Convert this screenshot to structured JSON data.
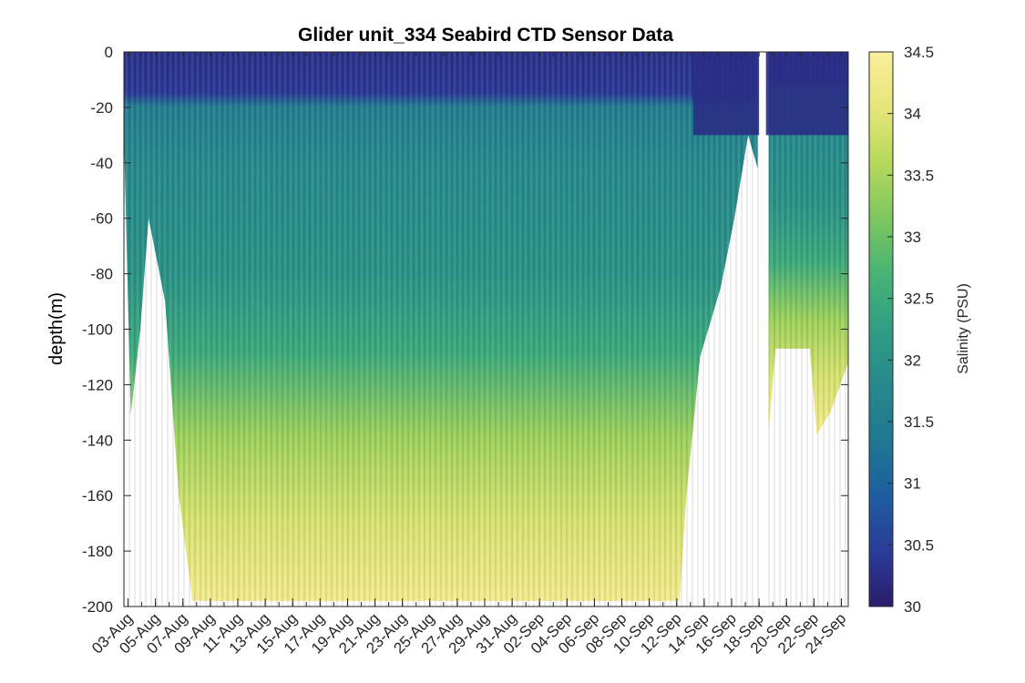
{
  "chart_data": {
    "type": "heatmap",
    "title": "Glider unit_334 Seabird CTD Sensor Data",
    "xlabel": "",
    "ylabel": "depth(m)",
    "ylim": [
      -200,
      0
    ],
    "yticks": [
      0,
      -20,
      -40,
      -60,
      -80,
      -100,
      -120,
      -140,
      -160,
      -180,
      -200
    ],
    "xlim_days": [
      0,
      52.8
    ],
    "xtick_labels": [
      "03-Aug",
      "05-Aug",
      "07-Aug",
      "09-Aug",
      "11-Aug",
      "13-Aug",
      "15-Aug",
      "17-Aug",
      "19-Aug",
      "21-Aug",
      "23-Aug",
      "25-Aug",
      "27-Aug",
      "29-Aug",
      "31-Aug",
      "02-Sep",
      "04-Sep",
      "06-Sep",
      "08-Sep",
      "10-Sep",
      "12-Sep",
      "14-Sep",
      "16-Sep",
      "18-Sep",
      "20-Sep",
      "22-Sep",
      "24-Sep"
    ],
    "colorbar": {
      "label": "Salinity (PSU)",
      "range": [
        30,
        34.5
      ],
      "ticks": [
        30,
        30.5,
        31,
        31.5,
        32,
        32.5,
        33,
        33.5,
        34,
        34.5
      ],
      "tick_labels": [
        "30",
        "30.5",
        "31",
        "31.5",
        "32",
        "32.5",
        "33",
        "33.5",
        "34",
        "34.5"
      ],
      "colormap": [
        "#2a1d6b",
        "#2a3c9a",
        "#1e5ea0",
        "#1f7891",
        "#27898c",
        "#2f9e84",
        "#48b474",
        "#7dc75f",
        "#b6d95a",
        "#e6e679",
        "#fbee9b"
      ]
    },
    "profile_max_depth": [
      {
        "day": 0,
        "depth": -30
      },
      {
        "day": 0.5,
        "depth": -131
      },
      {
        "day": 1.2,
        "depth": -100
      },
      {
        "day": 1.8,
        "depth": -60
      },
      {
        "day": 3.0,
        "depth": -90
      },
      {
        "day": 4.0,
        "depth": -160
      },
      {
        "day": 5.0,
        "depth": -198
      },
      {
        "day": 40.5,
        "depth": -198
      },
      {
        "day": 41.0,
        "depth": -160
      },
      {
        "day": 42.0,
        "depth": -110
      },
      {
        "day": 43.5,
        "depth": -85
      },
      {
        "day": 44.5,
        "depth": -60
      },
      {
        "day": 45.5,
        "depth": -30
      },
      {
        "day": 46.2,
        "depth": -42
      },
      {
        "day": 46.3,
        "depth": 0
      },
      {
        "day": 46.8,
        "depth": 0
      },
      {
        "day": 47.0,
        "depth": -137
      },
      {
        "day": 47.5,
        "depth": -107
      },
      {
        "day": 50.0,
        "depth": -107
      },
      {
        "day": 50.5,
        "depth": -138
      },
      {
        "day": 51.5,
        "depth": -130
      },
      {
        "day": 52.8,
        "depth": -112
      }
    ],
    "gaps_days": [
      [
        46.3,
        46.8
      ]
    ],
    "salinity_by_depth": [
      {
        "depth": 0,
        "salinity": 30.3
      },
      {
        "depth": -15,
        "salinity": 30.4
      },
      {
        "depth": -20,
        "salinity": 31.5
      },
      {
        "depth": -40,
        "salinity": 31.8
      },
      {
        "depth": -80,
        "salinity": 32.0
      },
      {
        "depth": -110,
        "salinity": 32.5
      },
      {
        "depth": -140,
        "salinity": 33.4
      },
      {
        "depth": -170,
        "salinity": 33.9
      },
      {
        "depth": -198,
        "salinity": 34.3
      }
    ],
    "surface_fresh_layer_days": [
      [
        41.5,
        46.3
      ],
      [
        46.8,
        52.8
      ]
    ],
    "surface_fresh_layer_depth": -30
  }
}
